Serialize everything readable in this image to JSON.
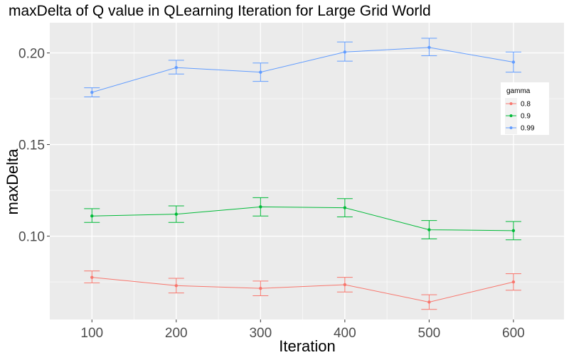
{
  "chart_data": {
    "type": "line",
    "title": "maxDelta of Q value in QLearning Iteration for Large Grid World",
    "xlabel": "Iteration",
    "ylabel": "maxDelta",
    "x": [
      100,
      200,
      300,
      400,
      500,
      600
    ],
    "x_tick_labels": [
      "100",
      "200",
      "300",
      "400",
      "500",
      "600"
    ],
    "y_ticks": [
      0.1,
      0.15,
      0.2
    ],
    "y_tick_labels": [
      "0.10",
      "0.15",
      "0.20"
    ],
    "xlim": [
      50,
      660
    ],
    "ylim": [
      0.0545,
      0.2165
    ],
    "grid": true,
    "legend": {
      "title": "gamma",
      "position": "right"
    },
    "series": [
      {
        "name": "0.8",
        "color": "#F8766D",
        "values": [
          0.0775,
          0.073,
          0.0715,
          0.0735,
          0.064,
          0.075
        ],
        "error_low": [
          0.0745,
          0.069,
          0.0675,
          0.0695,
          0.06,
          0.0705
        ],
        "error_high": [
          0.081,
          0.077,
          0.0755,
          0.0775,
          0.068,
          0.0795
        ]
      },
      {
        "name": "0.9",
        "color": "#00BA38",
        "values": [
          0.111,
          0.112,
          0.116,
          0.1155,
          0.1035,
          0.103
        ],
        "error_low": [
          0.1075,
          0.1075,
          0.111,
          0.1105,
          0.0985,
          0.098
        ],
        "error_high": [
          0.115,
          0.1165,
          0.121,
          0.1205,
          0.1085,
          0.108
        ]
      },
      {
        "name": "0.99",
        "color": "#619CFF",
        "values": [
          0.1785,
          0.192,
          0.1895,
          0.2005,
          0.203,
          0.195
        ],
        "error_low": [
          0.176,
          0.1885,
          0.1845,
          0.1955,
          0.1985,
          0.1895
        ],
        "error_high": [
          0.181,
          0.196,
          0.1945,
          0.206,
          0.208,
          0.2005
        ]
      }
    ]
  }
}
